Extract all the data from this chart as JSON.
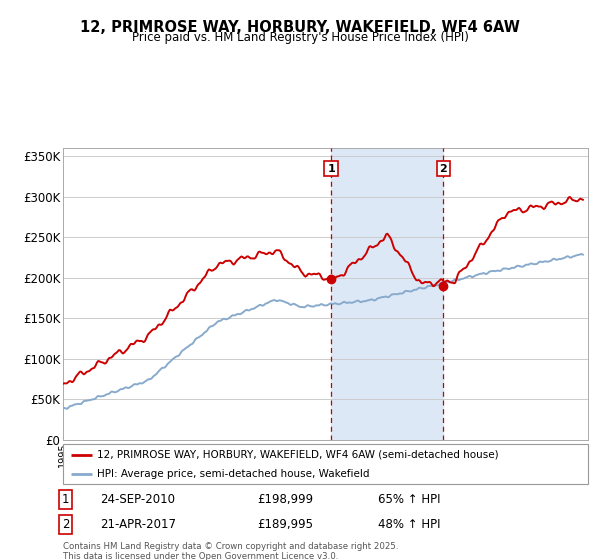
{
  "title": "12, PRIMROSE WAY, HORBURY, WAKEFIELD, WF4 6AW",
  "subtitle": "Price paid vs. HM Land Registry's House Price Index (HPI)",
  "legend_property": "12, PRIMROSE WAY, HORBURY, WAKEFIELD, WF4 6AW (semi-detached house)",
  "legend_hpi": "HPI: Average price, semi-detached house, Wakefield",
  "transaction1_date": "24-SEP-2010",
  "transaction1_price": "£198,999",
  "transaction1_hpi": "65% ↑ HPI",
  "transaction2_date": "21-APR-2017",
  "transaction2_price": "£189,995",
  "transaction2_hpi": "48% ↑ HPI",
  "footer": "Contains HM Land Registry data © Crown copyright and database right 2025.\nThis data is licensed under the Open Government Licence v3.0.",
  "property_color": "#cc0000",
  "hpi_color": "#88aacc",
  "highlight_color": "#dce8f5",
  "vline_color": "#cc0000",
  "grid_color": "#cccccc",
  "background_color": "#ffffff",
  "ylim": [
    0,
    360000
  ],
  "xlim_start": 1995.0,
  "xlim_end": 2025.8,
  "transaction1_x": 2010.73,
  "transaction2_x": 2017.31,
  "yticks": [
    0,
    50000,
    100000,
    150000,
    200000,
    250000,
    300000,
    350000
  ],
  "ytick_labels": [
    "£0",
    "£50K",
    "£100K",
    "£150K",
    "£200K",
    "£250K",
    "£300K",
    "£350K"
  ]
}
